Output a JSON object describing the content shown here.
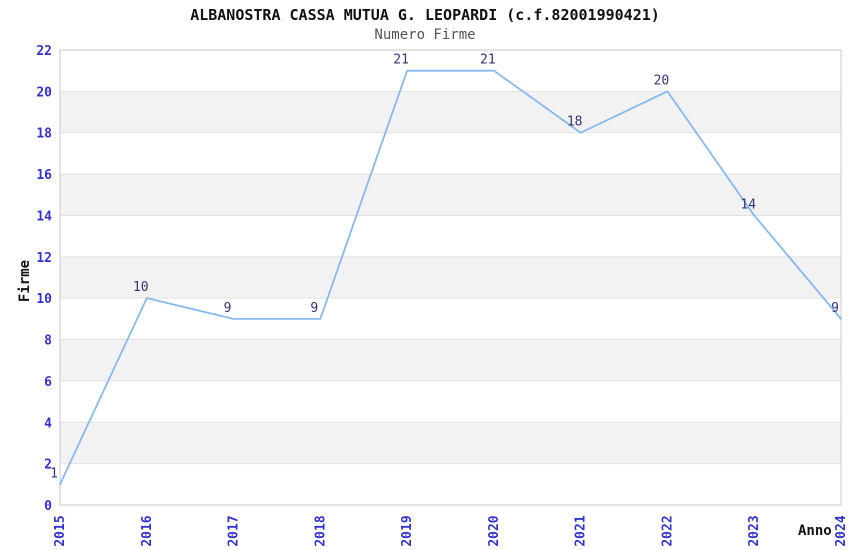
{
  "chart_data": {
    "type": "line",
    "title": "ALBANOSTRA CASSA MUTUA G. LEOPARDI (c.f.82001990421)",
    "subtitle": "Numero Firme",
    "xlabel": "Anno",
    "ylabel": "Firme",
    "categories": [
      "2015",
      "2016",
      "2017",
      "2018",
      "2019",
      "2020",
      "2021",
      "2022",
      "2023",
      "2024"
    ],
    "values": [
      1,
      10,
      9,
      9,
      21,
      21,
      18,
      20,
      14,
      9
    ],
    "point_labels": [
      "1",
      "10",
      "9",
      "9",
      "21",
      "21",
      "18",
      "20",
      "14",
      "9"
    ],
    "ylim": [
      0,
      22
    ],
    "ytick_step": 2,
    "ytick_labels": [
      "0",
      "2",
      "4",
      "6",
      "8",
      "10",
      "12",
      "14",
      "16",
      "18",
      "20",
      "22"
    ],
    "grid": "horizontal-stripes",
    "legend": "none",
    "colors": {
      "line": "#88b8ec",
      "tick_label": "#3333cc",
      "point_label": "#333377",
      "stripe_gray": "#f2f2f2",
      "stripe_white": "#ffffff",
      "grid_line": "#e2e2e2",
      "plot_border": "#c9c9c9",
      "title": "#111111",
      "subtitle": "#555555"
    }
  }
}
